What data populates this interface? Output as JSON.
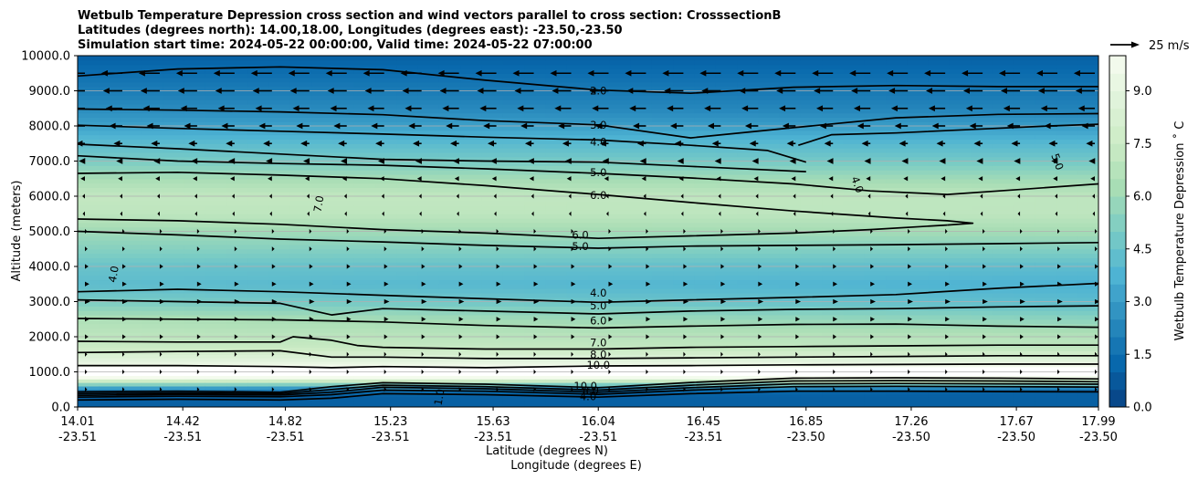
{
  "chart_data": {
    "type": "heatmap",
    "title_lines": [
      "Wetbulb Temperature Depression cross section and wind vectors parallel to cross section: CrosssectionB",
      "Latitudes (degrees north): 14.00,18.00, Longitudes (degrees east): -23.50,-23.50",
      "Simulation start time: 2024-05-22 00:00:00, Valid time: 2024-05-22 07:00:00"
    ],
    "xlabel_lat": "Latitude (degrees N)",
    "xlabel_lon": "Longitude (degrees E)",
    "ylabel": "Altitude (meters)",
    "colorbar_label": "Wetbulb Temperature Depression ˚ C",
    "quiver_key": "25 m/s",
    "xlim": [
      14.01,
      17.99
    ],
    "ylim": [
      0,
      10000
    ],
    "clim": [
      0,
      10
    ],
    "x_ticks": [
      {
        "x": 14.01,
        "lat": "14.01",
        "lon": "-23.51"
      },
      {
        "x": 14.42,
        "lat": "14.42",
        "lon": "-23.51"
      },
      {
        "x": 14.82,
        "lat": "14.82",
        "lon": "-23.51"
      },
      {
        "x": 15.23,
        "lat": "15.23",
        "lon": "-23.51"
      },
      {
        "x": 15.63,
        "lat": "15.63",
        "lon": "-23.51"
      },
      {
        "x": 16.04,
        "lat": "16.04",
        "lon": "-23.51"
      },
      {
        "x": 16.45,
        "lat": "16.45",
        "lon": "-23.51"
      },
      {
        "x": 16.85,
        "lat": "16.85",
        "lon": "-23.50"
      },
      {
        "x": 17.26,
        "lat": "17.26",
        "lon": "-23.50"
      },
      {
        "x": 17.67,
        "lat": "17.67",
        "lon": "-23.50"
      },
      {
        "x": 17.99,
        "lat": "17.99",
        "lon": "-23.50"
      }
    ],
    "y_ticks": [
      {
        "v": 0,
        "label": "0.0"
      },
      {
        "v": 1000,
        "label": "1000.0"
      },
      {
        "v": 2000,
        "label": "2000.0"
      },
      {
        "v": 3000,
        "label": "3000.0"
      },
      {
        "v": 4000,
        "label": "4000.0"
      },
      {
        "v": 5000,
        "label": "5000.0"
      },
      {
        "v": 6000,
        "label": "6000.0"
      },
      {
        "v": 7000,
        "label": "7000.0"
      },
      {
        "v": 8000,
        "label": "8000.0"
      },
      {
        "v": 9000,
        "label": "9000.0"
      },
      {
        "v": 10000,
        "label": "10000.0"
      }
    ],
    "colorbar_ticks": [
      {
        "v": 0,
        "label": "0.0"
      },
      {
        "v": 1.5,
        "label": "1.5"
      },
      {
        "v": 3,
        "label": "3.0"
      },
      {
        "v": 4.5,
        "label": "4.5"
      },
      {
        "v": 6,
        "label": "6.0"
      },
      {
        "v": 7.5,
        "label": "7.5"
      },
      {
        "v": 9,
        "label": "9.0"
      }
    ],
    "grid": "horizontal",
    "colors": {
      "cmap": [
        "#084081",
        "#0868ac",
        "#2b8cbe",
        "#4eb3d3",
        "#7bccc4",
        "#a8ddb5",
        "#ccebc5",
        "#e0f3db",
        "#f7fcf0"
      ]
    },
    "profile_altitudes": [
      0,
      300,
      500,
      900,
      1000,
      1300,
      1700,
      2000,
      2500,
      3000,
      3500,
      4000,
      4500,
      5000,
      5500,
      6000,
      6500,
      7000,
      7500,
      8000,
      8500,
      9000,
      9500,
      10000
    ],
    "profile_north": [
      1.0,
      1.0,
      2.0,
      11.0,
      11.0,
      9.0,
      7.5,
      7.0,
      6.5,
      5.0,
      4.2,
      4.5,
      5.3,
      6.0,
      7.0,
      7.2,
      6.3,
      5.0,
      4.2,
      3.2,
      2.5,
      2.0,
      1.5,
      1.0
    ],
    "profile_south": [
      1.0,
      1.0,
      1.0,
      11.0,
      11.0,
      9.0,
      7.0,
      6.7,
      5.5,
      4.2,
      3.7,
      4.2,
      5.2,
      6.2,
      7.0,
      7.0,
      6.0,
      4.8,
      4.0,
      3.0,
      2.2,
      1.8,
      1.4,
      1.0
    ],
    "contours": [
      {
        "level": "2.0",
        "x": [
          14.01,
          14.4,
          14.8,
          15.2,
          15.6,
          16.04,
          16.4,
          16.8,
          17.2,
          17.6,
          17.99
        ],
        "y": [
          9420,
          9620,
          9680,
          9600,
          9300,
          9020,
          8930,
          9100,
          9150,
          9120,
          9120
        ]
      },
      {
        "level": "3.0",
        "x": [
          14.01,
          14.4,
          14.8,
          15.2,
          15.6,
          16.04,
          16.4,
          16.8,
          17.2,
          17.6,
          17.99
        ],
        "y": [
          8480,
          8450,
          8400,
          8320,
          8150,
          8030,
          7660,
          7950,
          8230,
          8330,
          8350
        ]
      },
      {
        "level": "4.0",
        "x": [
          14.01,
          14.4,
          14.8,
          15.2,
          15.6,
          16.04,
          16.4,
          16.7,
          16.85
        ],
        "y": [
          8020,
          7930,
          7850,
          7770,
          7680,
          7600,
          7450,
          7300,
          6970
        ]
      },
      {
        "level": "4.0",
        "x": [
          14.01,
          14.4,
          14.8,
          15.2,
          15.6,
          16.04,
          16.4,
          16.85
        ],
        "y": [
          7480,
          7350,
          7200,
          7050,
          7000,
          6970,
          6850,
          6700
        ]
      },
      {
        "level": "4.0",
        "x": [
          16.82,
          16.95,
          17.2,
          17.5,
          17.8,
          17.99
        ],
        "y": [
          7450,
          7750,
          7800,
          7900,
          8000,
          8050
        ]
      },
      {
        "level": "5.0",
        "x": [
          14.01,
          14.4,
          14.8,
          15.2,
          15.6,
          16.04,
          16.4,
          16.8,
          17.1,
          17.4,
          17.7,
          17.99
        ],
        "y": [
          7150,
          7000,
          6930,
          6880,
          6780,
          6650,
          6520,
          6350,
          6150,
          6050,
          6200,
          6350
        ]
      },
      {
        "level": "6.0",
        "x": [
          14.01,
          14.4,
          14.8,
          15.2,
          15.6,
          16.04,
          16.4,
          16.8,
          17.2,
          17.4,
          17.5,
          17.4
        ],
        "y": [
          6650,
          6680,
          6600,
          6500,
          6300,
          6050,
          5820,
          5580,
          5380,
          5300,
          5230,
          5180
        ]
      },
      {
        "level": "6.0",
        "x": [
          14.01,
          14.4,
          14.8,
          15.2,
          15.6,
          16.04,
          16.4,
          16.8,
          17.1,
          17.4
        ],
        "y": [
          5350,
          5300,
          5200,
          5050,
          4950,
          4800,
          4870,
          4950,
          5050,
          5180
        ]
      },
      {
        "level": "5.0",
        "x": [
          14.01,
          14.4,
          14.8,
          15.2,
          15.6,
          16.04,
          16.4,
          16.8,
          17.2,
          17.6,
          17.99
        ],
        "y": [
          5000,
          4900,
          4780,
          4700,
          4600,
          4520,
          4580,
          4600,
          4620,
          4650,
          4680
        ]
      },
      {
        "level": "4.0",
        "x": [
          14.01,
          14.4,
          14.8,
          15.2,
          15.6,
          16.04,
          16.4,
          16.8,
          17.2,
          17.6,
          17.99
        ],
        "y": [
          3280,
          3350,
          3280,
          3180,
          3080,
          2980,
          3050,
          3120,
          3200,
          3380,
          3520
        ]
      },
      {
        "level": "5.0",
        "x": [
          14.01,
          14.4,
          14.8,
          15.0,
          15.2,
          15.6,
          16.04,
          16.4,
          16.8,
          17.2,
          17.6,
          17.99
        ],
        "y": [
          3050,
          3000,
          2950,
          2620,
          2800,
          2730,
          2650,
          2730,
          2780,
          2800,
          2850,
          2880
        ]
      },
      {
        "level": "6.0",
        "x": [
          14.01,
          14.4,
          14.8,
          15.2,
          15.6,
          16.04,
          16.4,
          16.8,
          17.2,
          17.6,
          17.99
        ],
        "y": [
          2520,
          2500,
          2480,
          2420,
          2320,
          2250,
          2300,
          2350,
          2360,
          2300,
          2270
        ]
      },
      {
        "level": "7.0",
        "x": [
          14.01,
          14.4,
          14.8,
          14.85,
          15.0,
          15.1,
          15.2,
          15.6,
          16.04,
          16.4,
          16.8,
          17.2,
          17.6,
          17.99
        ],
        "y": [
          1870,
          1850,
          1850,
          2000,
          1900,
          1750,
          1700,
          1650,
          1650,
          1700,
          1720,
          1740,
          1760,
          1760
        ]
      },
      {
        "level": "8.0",
        "x": [
          14.01,
          14.4,
          14.8,
          15.0,
          15.2,
          15.6,
          16.04,
          16.4,
          16.8,
          17.2,
          17.6,
          17.99
        ],
        "y": [
          1550,
          1580,
          1600,
          1420,
          1420,
          1380,
          1380,
          1400,
          1420,
          1440,
          1460,
          1460
        ]
      },
      {
        "level": "10.0",
        "x": [
          14.01,
          14.4,
          14.8,
          15.0,
          15.2,
          15.6,
          16.04,
          16.4,
          16.8,
          17.2,
          17.6,
          17.99
        ],
        "y": [
          1180,
          1180,
          1150,
          1120,
          1150,
          1120,
          1170,
          1180,
          1200,
          1210,
          1220,
          1220
        ]
      },
      {
        "level": "10.0",
        "x": [
          14.01,
          14.4,
          14.8,
          15.0,
          15.2,
          15.6,
          16.04,
          16.4,
          16.8,
          17.2,
          17.6,
          17.99
        ],
        "y": [
          430,
          450,
          420,
          580,
          690,
          650,
          550,
          700,
          820,
          830,
          820,
          800
        ]
      },
      {
        "level": "8.0",
        "x": [
          14.01,
          14.4,
          14.8,
          15.0,
          15.2,
          15.6,
          16.04,
          16.4,
          16.8,
          17.2,
          17.6,
          17.99
        ],
        "y": [
          380,
          400,
          380,
          500,
          620,
          580,
          480,
          620,
          740,
          750,
          740,
          720
        ]
      },
      {
        "level": "6.0",
        "x": [
          14.01,
          14.4,
          14.8,
          15.0,
          15.2,
          15.6,
          16.04,
          16.4,
          16.8,
          17.2,
          17.6,
          17.99
        ],
        "y": [
          330,
          360,
          340,
          420,
          560,
          520,
          420,
          550,
          660,
          670,
          660,
          650
        ]
      },
      {
        "level": "4.0",
        "x": [
          14.01,
          14.4,
          14.8,
          15.0,
          15.2,
          15.6,
          16.04,
          16.4,
          16.8,
          17.2,
          17.6,
          17.99
        ],
        "y": [
          280,
          310,
          290,
          350,
          480,
          450,
          360,
          480,
          580,
          590,
          580,
          570
        ]
      },
      {
        "level": "1.0",
        "x": [
          14.01,
          14.4,
          14.8,
          15.0,
          15.2,
          15.6,
          16.04,
          16.4,
          16.8,
          17.2,
          17.6,
          17.99
        ],
        "y": [
          200,
          220,
          200,
          250,
          380,
          350,
          280,
          380,
          450,
          450,
          440,
          430
        ]
      }
    ],
    "contour_labels": [
      {
        "level": "2.0",
        "x": 16.04,
        "y": 9000,
        "rot": 0
      },
      {
        "level": "3.0",
        "x": 16.04,
        "y": 8020,
        "rot": 0
      },
      {
        "level": "4.0",
        "x": 16.04,
        "y": 7550,
        "rot": 0
      },
      {
        "level": "5.0",
        "x": 16.04,
        "y": 6680,
        "rot": 0
      },
      {
        "level": "6.0",
        "x": 16.04,
        "y": 6020,
        "rot": 0
      },
      {
        "level": "7.0",
        "x": 14.95,
        "y": 5780,
        "rot": -80
      },
      {
        "level": "4.0",
        "x": 17.05,
        "y": 6330,
        "rot": 70
      },
      {
        "level": "5.0",
        "x": 17.83,
        "y": 6980,
        "rot": 70
      },
      {
        "level": "6.0",
        "x": 15.97,
        "y": 4900,
        "rot": 0
      },
      {
        "level": "5.0",
        "x": 15.97,
        "y": 4570,
        "rot": 0
      },
      {
        "level": "4.0",
        "x": 14.15,
        "y": 3780,
        "rot": -80
      },
      {
        "level": "4.0",
        "x": 16.04,
        "y": 3250,
        "rot": 0
      },
      {
        "level": "5.0",
        "x": 16.04,
        "y": 2880,
        "rot": 0
      },
      {
        "level": "6.0",
        "x": 16.04,
        "y": 2460,
        "rot": 0
      },
      {
        "level": "7.0",
        "x": 16.04,
        "y": 1830,
        "rot": 0
      },
      {
        "level": "8.0",
        "x": 16.04,
        "y": 1490,
        "rot": 0
      },
      {
        "level": "10.0",
        "x": 16.04,
        "y": 1200,
        "rot": 0
      },
      {
        "level": "10.0",
        "x": 15.99,
        "y": 600,
        "rot": 0
      },
      {
        "level": "8.0",
        "x": 16.01,
        "y": 470,
        "rot": 0
      },
      {
        "level": "4.0",
        "x": 16.0,
        "y": 300,
        "rot": 0
      },
      {
        "level": "1.0",
        "x": 15.42,
        "y": 280,
        "rot": -80
      }
    ],
    "wind_rows": [
      {
        "y": 9500,
        "u": -24
      },
      {
        "y": 9000,
        "u": -22
      },
      {
        "y": 8500,
        "u": -19
      },
      {
        "y": 8000,
        "u": -15
      },
      {
        "y": 7500,
        "u": -10
      },
      {
        "y": 7000,
        "u": -7
      },
      {
        "y": 6500,
        "u": -5
      },
      {
        "y": 6000,
        "u": -3
      },
      {
        "y": 5500,
        "u": -1.5
      },
      {
        "y": 5000,
        "u": 2
      },
      {
        "y": 4500,
        "u": 3
      },
      {
        "y": 4000,
        "u": 4
      },
      {
        "y": 3500,
        "u": 5
      },
      {
        "y": 3000,
        "u": 6
      },
      {
        "y": 2500,
        "u": 5
      },
      {
        "y": 2000,
        "u": 4
      },
      {
        "y": 1500,
        "u": 2
      },
      {
        "y": 1000,
        "u": 1.5
      },
      {
        "y": 500,
        "u": 1
      }
    ]
  }
}
